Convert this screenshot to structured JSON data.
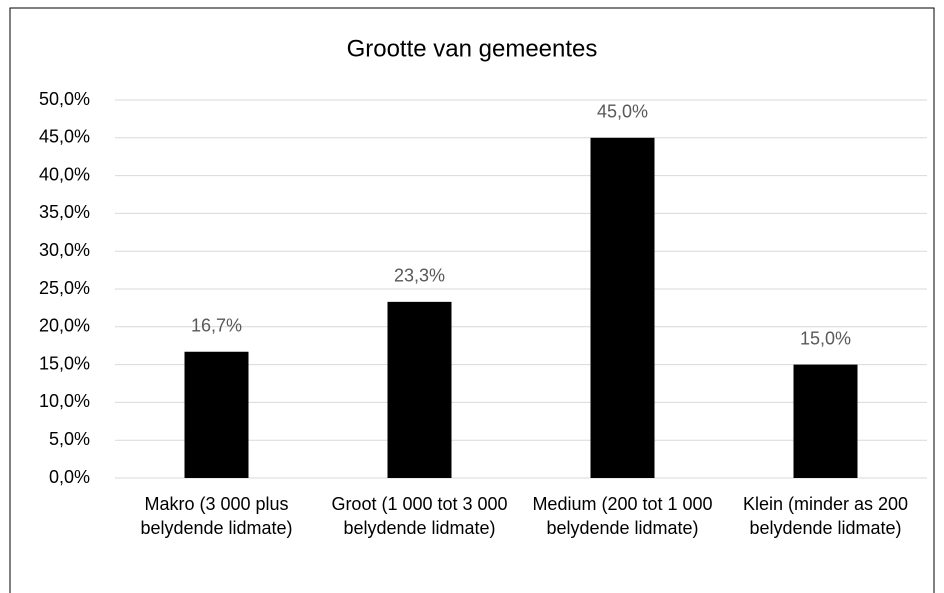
{
  "chart_data": {
    "type": "bar",
    "title": "Grootte van gemeentes",
    "categories": [
      "Makro (3 000 plus belydende lidmate)",
      "Groot (1 000 tot 3 000 belydende lidmate)",
      "Medium (200 tot 1 000 belydende lidmate)",
      "Klein (minder as 200 belydende lidmate)"
    ],
    "values": [
      16.7,
      23.3,
      45.0,
      15.0
    ],
    "value_labels": [
      "16,7%",
      "23,3%",
      "45,0%",
      "15,0%"
    ],
    "color": "#000000",
    "ylim": [
      0,
      50
    ],
    "yticks": [
      {
        "value": 0,
        "label": "0,0%"
      },
      {
        "value": 5,
        "label": "5,0%"
      },
      {
        "value": 10,
        "label": "10,0%"
      },
      {
        "value": 15,
        "label": "15,0%"
      },
      {
        "value": 20,
        "label": "20,0%"
      },
      {
        "value": 25,
        "label": "25,0%"
      },
      {
        "value": 30,
        "label": "30,0%"
      },
      {
        "value": 35,
        "label": "35,0%"
      },
      {
        "value": 40,
        "label": "40,0%"
      },
      {
        "value": 45,
        "label": "45,0%"
      },
      {
        "value": 50,
        "label": "50,0%"
      }
    ],
    "grid": true
  }
}
